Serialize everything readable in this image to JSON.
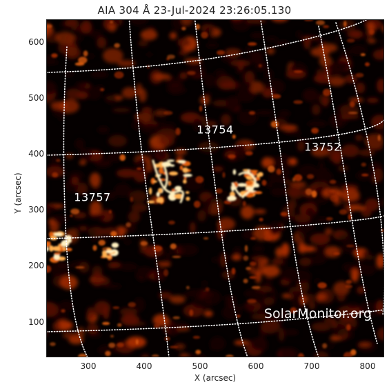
{
  "title": "AIA 304 Å 23-Jul-2024 23:26:05.130",
  "axes": {
    "xlabel": "X (arcsec)",
    "ylabel": "Y (arcsec)",
    "x_ticks": [
      "300",
      "400",
      "500",
      "600",
      "700",
      "800"
    ],
    "y_ticks": [
      "100",
      "200",
      "300",
      "400",
      "500",
      "600"
    ]
  },
  "active_regions": [
    {
      "number": "13754"
    },
    {
      "number": "13752"
    },
    {
      "number": "13757"
    }
  ],
  "watermark": "SolarMonitor.org",
  "colors": {
    "background": "#050000",
    "grid": "#ffffff",
    "palette": [
      "#1a0300",
      "#5a1200",
      "#a42c00",
      "#e06010",
      "#ffb050",
      "#fff0c0"
    ]
  }
}
